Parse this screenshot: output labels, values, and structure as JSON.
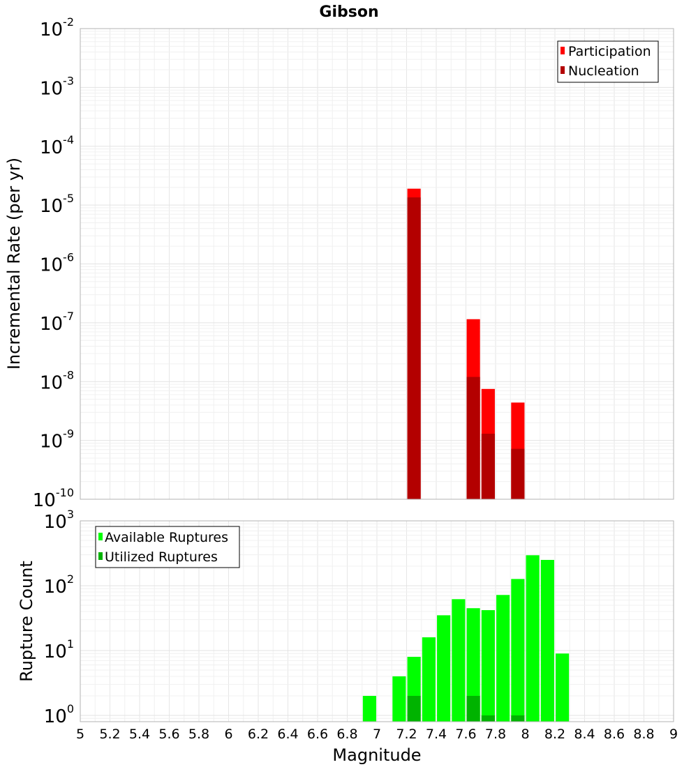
{
  "chart_data": [
    {
      "type": "bar",
      "title": "Gibson",
      "xlabel": "",
      "ylabel": "Incremental Rate (per yr)",
      "xlim": [
        5,
        9
      ],
      "ylim": [
        1e-10,
        0.01
      ],
      "yscale": "log",
      "y_tick_exponents": [
        "-2",
        "-3",
        "-4",
        "-5",
        "-6",
        "-7",
        "-8",
        "-9",
        "-10"
      ],
      "grid": true,
      "legend_position": "top-right",
      "series": [
        {
          "name": "Participation",
          "color": "#ff0000",
          "x": [
            7.25,
            7.65,
            7.75,
            7.95
          ],
          "values": [
            1.9e-05,
            1.15e-07,
            7.5e-09,
            4.4e-09
          ]
        },
        {
          "name": "Nucleation",
          "color": "#b30000",
          "x": [
            7.25,
            7.65,
            7.75,
            7.95
          ],
          "values": [
            1.35e-05,
            1.2e-08,
            1.3e-09,
            7.2e-10
          ]
        }
      ]
    },
    {
      "type": "bar",
      "title": "",
      "xlabel": "Magnitude",
      "ylabel": "Rupture Count",
      "xlim": [
        5,
        9
      ],
      "ylim": [
        0.8,
        1000
      ],
      "yscale": "log",
      "y_tick_exponents": [
        "3",
        "2",
        "1",
        "0"
      ],
      "x_tick_labels": [
        "5",
        "5.2",
        "5.4",
        "5.6",
        "5.8",
        "6",
        "6.2",
        "6.4",
        "6.6",
        "6.8",
        "7",
        "7.2",
        "7.4",
        "7.6",
        "7.8",
        "8",
        "8.2",
        "8.4",
        "8.6",
        "8.8",
        "9"
      ],
      "grid": true,
      "legend_position": "top-left",
      "series": [
        {
          "name": "Available Ruptures",
          "color": "#00ff00",
          "x": [
            6.95,
            7.15,
            7.25,
            7.35,
            7.45,
            7.55,
            7.65,
            7.75,
            7.85,
            7.95,
            8.05,
            8.15,
            8.25
          ],
          "values": [
            2,
            4,
            8,
            16,
            35,
            62,
            45,
            42,
            72,
            127,
            295,
            250,
            9
          ]
        },
        {
          "name": "Utilized Ruptures",
          "color": "#00b300",
          "x": [
            7.25,
            7.65,
            7.75,
            7.95
          ],
          "values": [
            2,
            2,
            1,
            1
          ]
        }
      ]
    }
  ]
}
